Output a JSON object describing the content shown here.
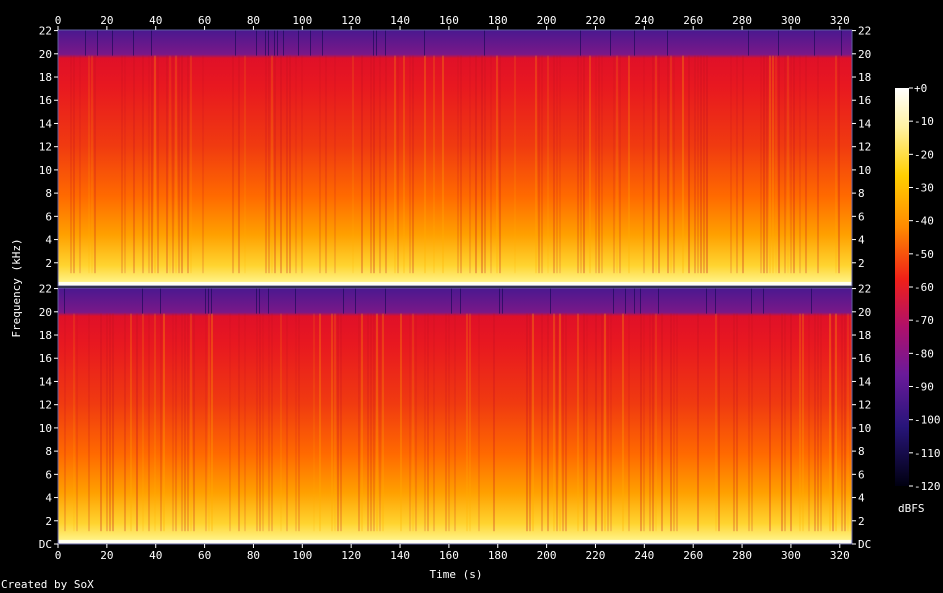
{
  "chart_data": {
    "type": "heatmap",
    "xlabel": "Time (s)",
    "ylabel": "Frequency (kHz)",
    "x_ticks": [
      "0",
      "20",
      "40",
      "60",
      "80",
      "100",
      "120",
      "140",
      "160",
      "180",
      "200",
      "220",
      "240",
      "260",
      "280",
      "300",
      "320"
    ],
    "xlim": [
      0,
      325
    ],
    "channels": [
      {
        "name": "",
        "y_ticks": [
          "2",
          "4",
          "6",
          "8",
          "10",
          "12",
          "14",
          "16",
          "18",
          "20",
          "22"
        ],
        "y_ticks_right": [
          "2",
          "4",
          "6",
          "8",
          "10",
          "12",
          "14",
          "16",
          "18",
          "20",
          "22"
        ]
      },
      {
        "name": "",
        "y_ticks": [
          "DC",
          "2",
          "4",
          "6",
          "8",
          "10",
          "12",
          "14",
          "16",
          "18",
          "20",
          "22"
        ],
        "y_ticks_right": [
          "DC",
          "2",
          "4",
          "6",
          "8",
          "10",
          "12",
          "14",
          "16",
          "18",
          "20",
          "22"
        ]
      }
    ],
    "ylim_khz": [
      0,
      22.05
    ],
    "colorbar": {
      "label": "dBFS",
      "ticks": [
        "+0",
        "-10",
        "-20",
        "-30",
        "-40",
        "-50",
        "-60",
        "-70",
        "-80",
        "-90",
        "-100",
        "-110",
        "-120"
      ],
      "range": [
        -120,
        0
      ]
    },
    "grid": false,
    "legend": "none"
  },
  "footer": {
    "credit": "Created by SoX"
  }
}
